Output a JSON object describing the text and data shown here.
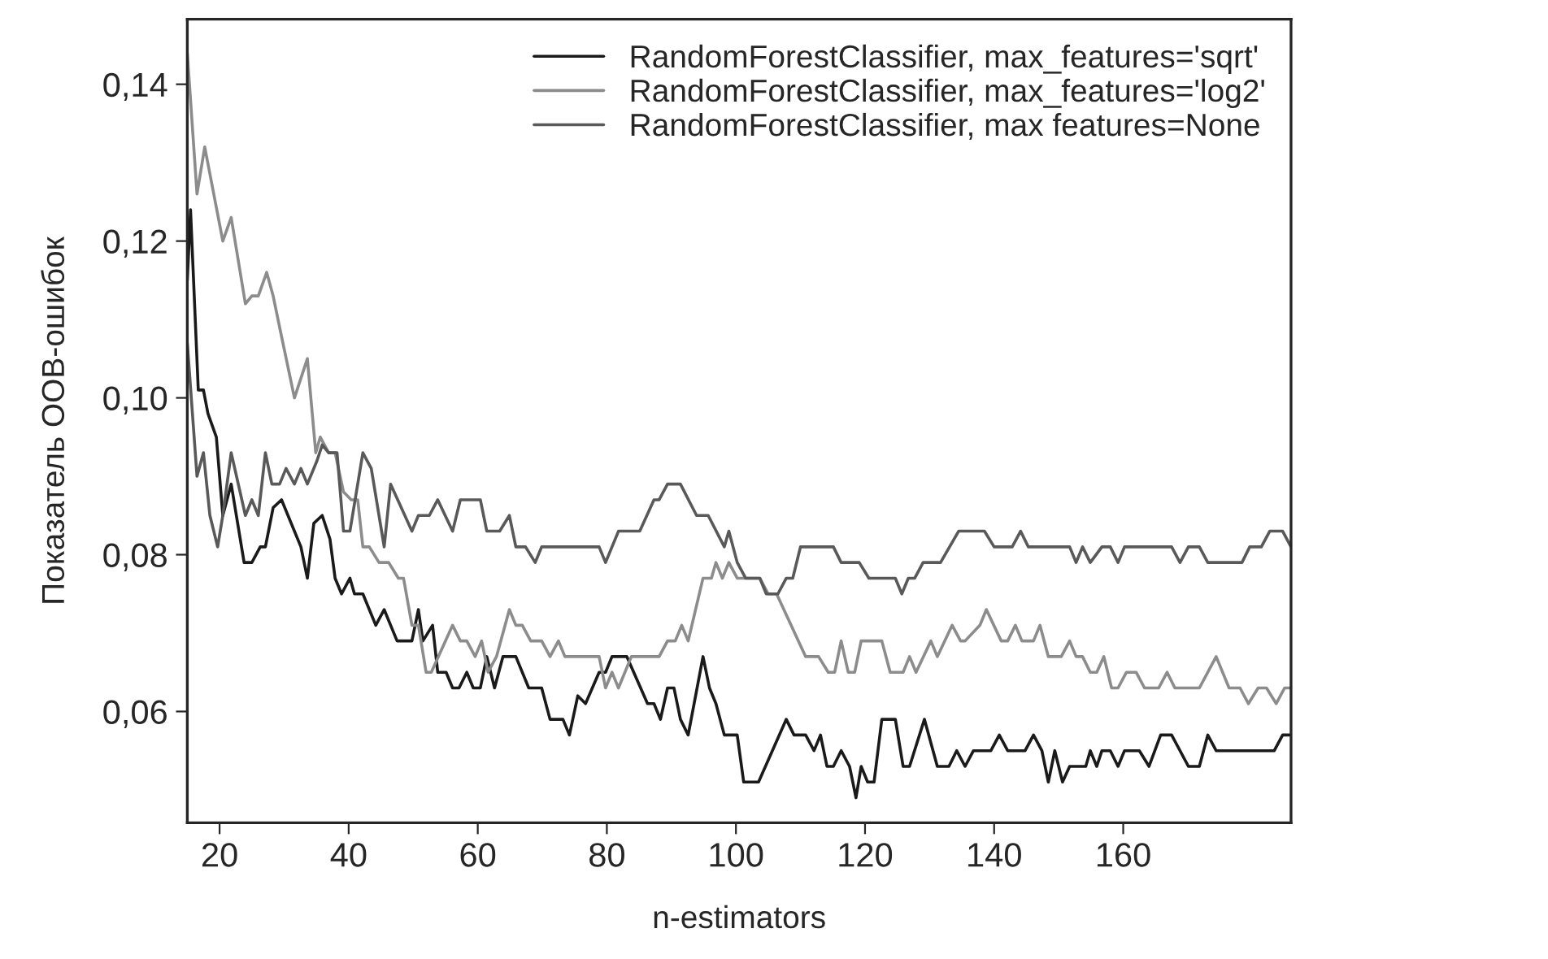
{
  "chart_data": {
    "type": "line",
    "xlabel": "n-estimators",
    "ylabel": "Показатель OOB-ошибок",
    "xlim": [
      15,
      186
    ],
    "ylim": [
      0.0458,
      0.1483
    ],
    "xticks": [
      20,
      40,
      60,
      80,
      100,
      120,
      140,
      160
    ],
    "yticks": [
      {
        "value": 0.06,
        "label": "0,06"
      },
      {
        "value": 0.08,
        "label": "0,08"
      },
      {
        "value": 0.1,
        "label": "0,10"
      },
      {
        "value": 0.12,
        "label": "0,12"
      },
      {
        "value": 0.14,
        "label": "0,14"
      }
    ],
    "grid": false,
    "legend": "top right",
    "marker": "none",
    "line_style": "solid",
    "series": [
      {
        "name": "RandomForestClassifier, max_features='sqrt'",
        "color": "#1a1a1a",
        "x": [
          15,
          15.5,
          16.7,
          17.5,
          18.2,
          19.5,
          20.5,
          21.8,
          23.8,
          25,
          26.3,
          27.1,
          28.3,
          29.6,
          32.6,
          33.6,
          34.6,
          35.9,
          37.1,
          37.9,
          38.9,
          40.2,
          40.9,
          42.2,
          44.2,
          45.5,
          47.5,
          49.8,
          50.8,
          51.5,
          53,
          53.8,
          55.1,
          56.1,
          57.1,
          58.3,
          59.3,
          60.4,
          61.4,
          62.6,
          63.9,
          65.9,
          67.9,
          69.9,
          71.2,
          73.2,
          74.2,
          75.5,
          76.7,
          78.8,
          79.8,
          80.8,
          83.1,
          86.3,
          87.3,
          88.3,
          89.4,
          90.4,
          91.4,
          92.6,
          94.9,
          95.9,
          96.9,
          98.2,
          100.2,
          101.2,
          103.5,
          107.8,
          109,
          110.8,
          112.1,
          113.1,
          114.1,
          115.1,
          116.3,
          117.6,
          118.6,
          119.4,
          120.4,
          121.4,
          122.6,
          124.7,
          125.9,
          126.9,
          129.2,
          131.2,
          133,
          134.2,
          135.5,
          136.8,
          139.5,
          140.8,
          142.1,
          144.8,
          146.1,
          147.4,
          148.4,
          149.4,
          150.6,
          151.7,
          154.2,
          154.9,
          155.9,
          156.7,
          158,
          159.2,
          160.2,
          162.5,
          164,
          165.8,
          167.5,
          170.1,
          171.8,
          173.1,
          174.4,
          183.4,
          184.7,
          186
        ],
        "values": [
          0.115,
          0.124,
          0.101,
          0.101,
          0.098,
          0.095,
          0.085,
          0.089,
          0.079,
          0.079,
          0.081,
          0.081,
          0.086,
          0.087,
          0.081,
          0.077,
          0.084,
          0.085,
          0.082,
          0.077,
          0.075,
          0.077,
          0.075,
          0.075,
          0.071,
          0.073,
          0.069,
          0.069,
          0.073,
          0.069,
          0.071,
          0.065,
          0.065,
          0.063,
          0.063,
          0.065,
          0.063,
          0.063,
          0.067,
          0.063,
          0.067,
          0.067,
          0.063,
          0.063,
          0.059,
          0.059,
          0.057,
          0.062,
          0.061,
          0.065,
          0.065,
          0.067,
          0.067,
          0.061,
          0.061,
          0.059,
          0.063,
          0.063,
          0.059,
          0.057,
          0.067,
          0.063,
          0.061,
          0.057,
          0.057,
          0.051,
          0.051,
          0.059,
          0.057,
          0.057,
          0.055,
          0.057,
          0.053,
          0.053,
          0.055,
          0.053,
          0.049,
          0.053,
          0.051,
          0.051,
          0.059,
          0.059,
          0.053,
          0.053,
          0.059,
          0.053,
          0.053,
          0.055,
          0.053,
          0.055,
          0.055,
          0.057,
          0.055,
          0.055,
          0.057,
          0.055,
          0.051,
          0.055,
          0.051,
          0.053,
          0.053,
          0.055,
          0.053,
          0.055,
          0.055,
          0.053,
          0.055,
          0.055,
          0.053,
          0.057,
          0.057,
          0.053,
          0.053,
          0.057,
          0.055,
          0.055,
          0.057,
          0.057
        ]
      },
      {
        "name": "RandomForestClassifier, max_features='log2'",
        "color": "#8c8c8c",
        "x": [
          15,
          16.5,
          17.7,
          20.5,
          21.8,
          24,
          25,
          26,
          27.3,
          28.3,
          29.3,
          31.6,
          33.6,
          34.9,
          35.6,
          36.9,
          37.9,
          39.2,
          40.4,
          41.4,
          42.2,
          43.2,
          44.7,
          46.2,
          47.7,
          48.5,
          49.8,
          50.8,
          52,
          52.8,
          56.1,
          57.3,
          58.3,
          59.6,
          60.6,
          61.6,
          62.9,
          64.9,
          65.9,
          66.9,
          68.2,
          69.9,
          71.2,
          72.5,
          73.5,
          78.8,
          79.8,
          80.8,
          81.8,
          83.8,
          88.1,
          89.4,
          90.6,
          91.6,
          92.6,
          94.9,
          96.2,
          96.9,
          97.9,
          98.9,
          100.2,
          103.7,
          105,
          106.3,
          110.8,
          112.8,
          114.3,
          115.3,
          116.3,
          117.4,
          118.4,
          119.4,
          122.6,
          123.9,
          125.9,
          126.9,
          127.9,
          130.2,
          131.2,
          133.5,
          134.8,
          135.5,
          137.8,
          138.8,
          141.1,
          142.1,
          143.3,
          144.3,
          146.1,
          147.1,
          148.4,
          150.4,
          151.7,
          152.7,
          153.7,
          154.9,
          155.9,
          157,
          158.2,
          159.2,
          160.5,
          162,
          163.3,
          165.5,
          166.8,
          168,
          171.8,
          174.4,
          176.4,
          178.1,
          179.4,
          180.9,
          182.2,
          183.7,
          185,
          186
        ],
        "values": [
          0.144,
          0.126,
          0.132,
          0.12,
          0.123,
          0.112,
          0.113,
          0.113,
          0.116,
          0.113,
          0.109,
          0.1,
          0.105,
          0.093,
          0.095,
          0.093,
          0.093,
          0.088,
          0.087,
          0.087,
          0.081,
          0.081,
          0.079,
          0.079,
          0.077,
          0.077,
          0.071,
          0.071,
          0.065,
          0.065,
          0.071,
          0.069,
          0.069,
          0.067,
          0.069,
          0.065,
          0.067,
          0.073,
          0.071,
          0.071,
          0.069,
          0.069,
          0.067,
          0.069,
          0.067,
          0.067,
          0.063,
          0.065,
          0.063,
          0.067,
          0.067,
          0.069,
          0.069,
          0.071,
          0.069,
          0.077,
          0.077,
          0.079,
          0.077,
          0.079,
          0.077,
          0.077,
          0.075,
          0.075,
          0.067,
          0.067,
          0.065,
          0.065,
          0.069,
          0.065,
          0.065,
          0.069,
          0.069,
          0.065,
          0.065,
          0.067,
          0.065,
          0.069,
          0.067,
          0.071,
          0.069,
          0.069,
          0.071,
          0.073,
          0.069,
          0.069,
          0.071,
          0.069,
          0.069,
          0.071,
          0.067,
          0.067,
          0.069,
          0.067,
          0.067,
          0.065,
          0.065,
          0.067,
          0.063,
          0.063,
          0.065,
          0.065,
          0.063,
          0.063,
          0.065,
          0.063,
          0.063,
          0.067,
          0.063,
          0.063,
          0.061,
          0.063,
          0.063,
          0.061,
          0.063,
          0.063
        ]
      },
      {
        "name": "RandomForestClassifier, max features=None",
        "color": "#595959",
        "x": [
          15,
          16.5,
          17.5,
          18.5,
          19.7,
          20.5,
          21.8,
          24,
          25,
          26,
          27.1,
          28.1,
          29.3,
          30.3,
          31.6,
          32.6,
          33.6,
          35.1,
          35.9,
          36.9,
          38.2,
          39.2,
          40.2,
          42.2,
          43.5,
          45.5,
          46.5,
          49.8,
          50.8,
          52.5,
          53.8,
          56.1,
          57.3,
          60.4,
          61.4,
          63.4,
          64.9,
          65.9,
          67.4,
          68.9,
          69.9,
          78.8,
          79.8,
          81.8,
          85.1,
          87.3,
          88.1,
          89.4,
          91.4,
          93.9,
          95.7,
          98.2,
          98.9,
          100.2,
          101.5,
          103.7,
          104.7,
          106.5,
          107.8,
          108.8,
          110,
          115.1,
          116.3,
          119.1,
          120.6,
          124.7,
          125.7,
          126.7,
          127.7,
          129,
          131.7,
          134.5,
          138.5,
          140,
          142.8,
          144.1,
          145.3,
          151.7,
          152.7,
          153.7,
          154.9,
          156.7,
          158,
          159.2,
          160.2,
          167.5,
          168.8,
          170.1,
          171.8,
          173.1,
          178.4,
          179.6,
          181.4,
          182.7,
          184.7,
          186
        ],
        "values": [
          0.107,
          0.09,
          0.093,
          0.085,
          0.081,
          0.085,
          0.093,
          0.085,
          0.087,
          0.085,
          0.093,
          0.089,
          0.089,
          0.091,
          0.089,
          0.091,
          0.089,
          0.092,
          0.094,
          0.093,
          0.093,
          0.083,
          0.083,
          0.093,
          0.091,
          0.081,
          0.089,
          0.083,
          0.085,
          0.085,
          0.087,
          0.083,
          0.087,
          0.087,
          0.083,
          0.083,
          0.085,
          0.081,
          0.081,
          0.079,
          0.081,
          0.081,
          0.079,
          0.083,
          0.083,
          0.087,
          0.087,
          0.089,
          0.089,
          0.085,
          0.085,
          0.081,
          0.083,
          0.079,
          0.077,
          0.077,
          0.075,
          0.075,
          0.077,
          0.077,
          0.081,
          0.081,
          0.079,
          0.079,
          0.077,
          0.077,
          0.075,
          0.077,
          0.077,
          0.079,
          0.079,
          0.083,
          0.083,
          0.081,
          0.081,
          0.083,
          0.081,
          0.081,
          0.079,
          0.081,
          0.079,
          0.081,
          0.081,
          0.079,
          0.081,
          0.081,
          0.079,
          0.081,
          0.081,
          0.079,
          0.079,
          0.081,
          0.081,
          0.083,
          0.083,
          0.081
        ]
      }
    ]
  }
}
